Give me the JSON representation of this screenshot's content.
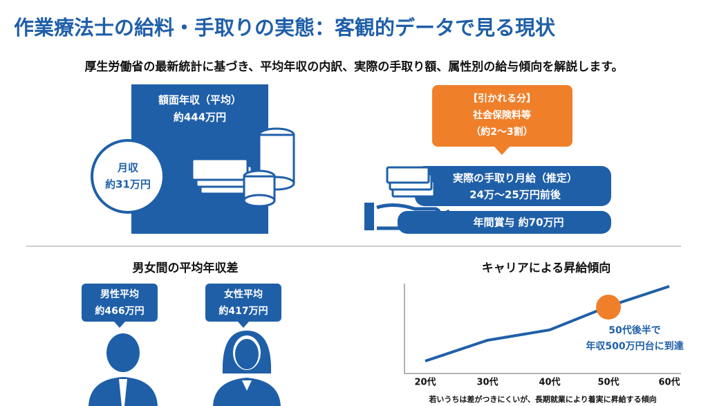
{
  "header": {
    "title": "作業療法士の給料・手取りの実態：客観的データで見る現状",
    "subtitle": "厚生労働省の最新統計に基づき、平均年収の内訳、実際の手取り額、属性別の給与傾向を解説します。"
  },
  "annual": {
    "label": "額面年収（平均）",
    "value": "約444万円"
  },
  "monthly": {
    "label": "月収",
    "value": "約31万円"
  },
  "deduction": {
    "label": "【引かれる分】",
    "item": "社会保険料等",
    "ratio": "（約2〜3割）"
  },
  "takehome": {
    "label": "実際の手取り月給（推定）",
    "value": "24万〜25万円前後"
  },
  "bonus": {
    "label": "年間賞与 約70万円"
  },
  "gender": {
    "title": "男女間の平均年収差",
    "male": {
      "label": "男性平均",
      "value": "約466万円"
    },
    "female": {
      "label": "女性平均",
      "value": "約417万円"
    }
  },
  "career": {
    "title": "キャリアによる昇給傾向",
    "categories": [
      "20代",
      "30代",
      "40代",
      "50代",
      "60代"
    ],
    "annotation": [
      "50代後半で",
      "年収500万円台に到達"
    ],
    "note": "若いうちは差がつきにくいが、長期就業により着実に昇給する傾向"
  }
}
